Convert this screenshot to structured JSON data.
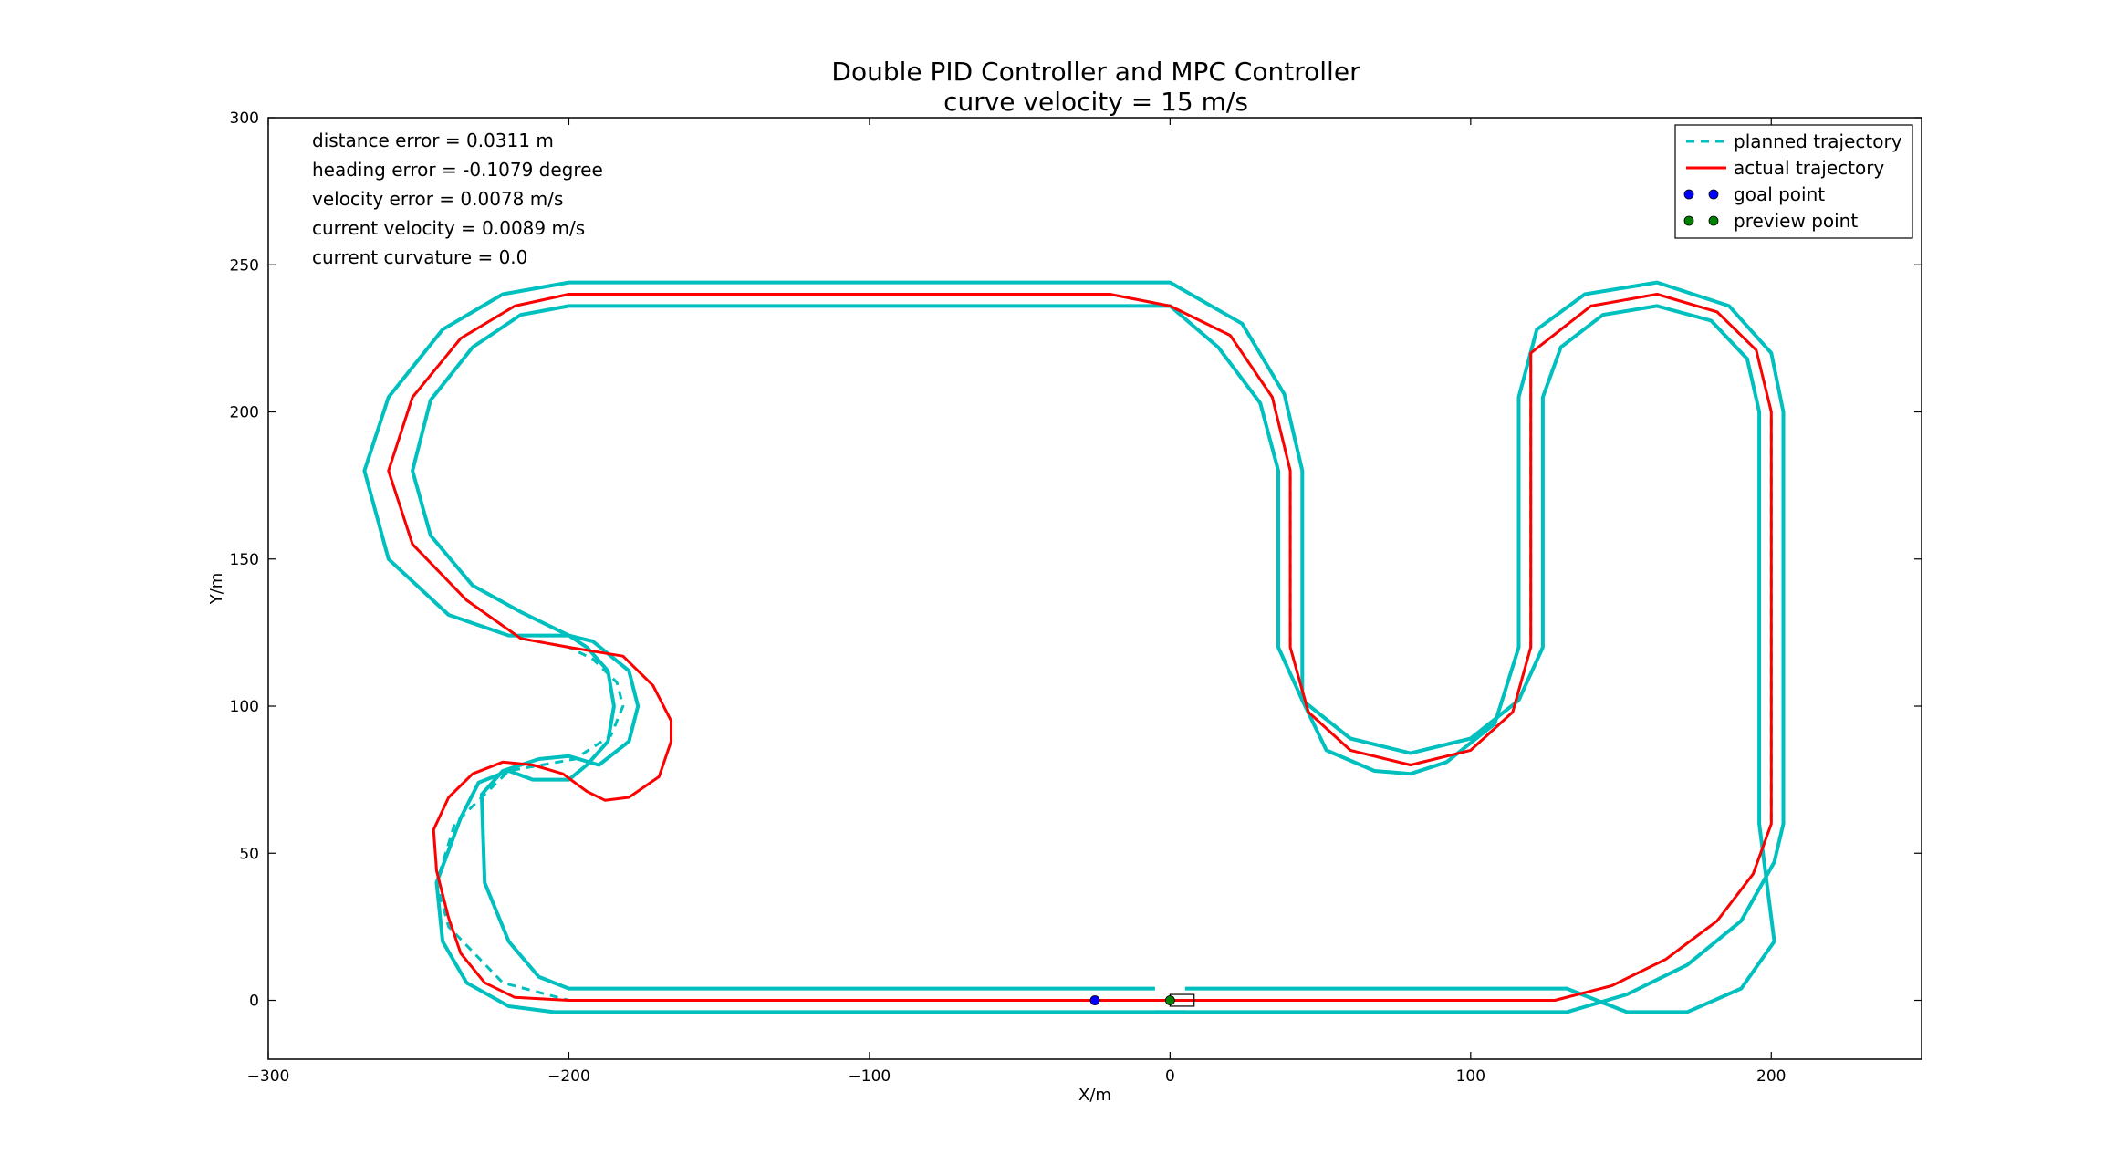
{
  "chart_data": {
    "type": "line",
    "title": "Double PID Controller and MPC Controller",
    "subtitle": "curve velocity = 15 m/s",
    "xlabel": "X/m",
    "ylabel": "Y/m",
    "xlim": [
      -300,
      250
    ],
    "ylim": [
      -20,
      300
    ],
    "xticks": [
      -300,
      -200,
      -100,
      0,
      100,
      200
    ],
    "xtick_labels": [
      "−300",
      "−200",
      "−100",
      "0",
      "100",
      "200"
    ],
    "yticks": [
      0,
      50,
      100,
      150,
      200,
      250,
      300
    ],
    "ytick_labels": [
      "0",
      "50",
      "100",
      "150",
      "200",
      "250",
      "300"
    ],
    "grid": false,
    "legend_position": "top-right",
    "info_text": [
      "distance error = 0.0311 m",
      "heading error = -0.1079 degree",
      "velocity error = 0.0078 m/s",
      "current velocity = 0.0089 m/s",
      "current curvature = 0.0"
    ],
    "legend": [
      {
        "label": "planned trajectory",
        "style": "dashed-line",
        "color": "#00bfbf"
      },
      {
        "label": "actual trajectory",
        "style": "line",
        "color": "#ff0000"
      },
      {
        "label": "goal point",
        "style": "dots",
        "color": "#0000ff"
      },
      {
        "label": "preview point",
        "style": "dots",
        "color": "#008000"
      }
    ],
    "series": [
      {
        "name": "planned trajectory",
        "color": "#00bfbf",
        "style": "dashed",
        "x": [
          -200,
          -23,
          0,
          122,
          128,
          147,
          165,
          182,
          194,
          200,
          200,
          195,
          182,
          162,
          140,
          120,
          120,
          114,
          100,
          80,
          60,
          46,
          40,
          40,
          34,
          20,
          0,
          -20,
          -200,
          -218,
          -236,
          -252,
          -260,
          -252,
          -234,
          -216,
          -200,
          -192,
          -184,
          -182,
          -186,
          -198,
          -220,
          -238,
          -244,
          -240,
          -222,
          -200
        ],
        "y": [
          0,
          0,
          0,
          0,
          0,
          5,
          14,
          27,
          43,
          60,
          200,
          221,
          234,
          240,
          236,
          220,
          120,
          98,
          85,
          80,
          85,
          98,
          120,
          180,
          205,
          226,
          236,
          240,
          240,
          236,
          225,
          205,
          180,
          155,
          136,
          123,
          120,
          116,
          108,
          100,
          90,
          82,
          78,
          60,
          40,
          25,
          6,
          0
        ]
      },
      {
        "name": "actual trajectory",
        "color": "#ff0000",
        "style": "solid",
        "x": [
          -200,
          -23,
          0,
          122,
          128,
          147,
          165,
          182,
          194,
          200,
          200,
          195,
          182,
          162,
          140,
          120,
          120,
          114,
          100,
          80,
          60,
          46,
          40,
          40,
          34,
          20,
          0,
          -20,
          -200,
          -218,
          -236,
          -252,
          -260,
          -252,
          -234,
          -216,
          -200,
          -182,
          -172,
          -166,
          -166,
          -170,
          -180,
          -188,
          -194,
          -202,
          -212,
          -222,
          -232,
          -240,
          -245,
          -244,
          -240,
          -236,
          -228,
          -218,
          -200
        ],
        "y": [
          0,
          0,
          0,
          0,
          0,
          5,
          14,
          27,
          43,
          60,
          200,
          221,
          234,
          240,
          236,
          220,
          120,
          98,
          85,
          80,
          85,
          98,
          120,
          180,
          205,
          226,
          236,
          240,
          240,
          236,
          225,
          205,
          180,
          155,
          136,
          123,
          120,
          117,
          107,
          95,
          88,
          76,
          69,
          68,
          71,
          77,
          80,
          81,
          77,
          69,
          58,
          44,
          28,
          16,
          6,
          1,
          0
        ]
      }
    ],
    "track_boundaries": [
      {
        "name": "outer boundary",
        "color": "#00bfbf",
        "x": [
          -5,
          124,
          132,
          152,
          172,
          190,
          201,
          204,
          204,
          200,
          186,
          162,
          138,
          122,
          116,
          116,
          108,
          92,
          80,
          68,
          52,
          44,
          44,
          38,
          24,
          0,
          -20,
          -200,
          -222,
          -242,
          -260,
          -268,
          -260,
          -240,
          -220,
          -200,
          -192,
          -180,
          -177,
          -180,
          -190,
          -200,
          -210,
          -222,
          -229,
          -228,
          -220,
          -210,
          -200,
          -5
        ],
        "y": [
          -4,
          -4,
          -4,
          2,
          12,
          27,
          47,
          60,
          200,
          220,
          236,
          244,
          240,
          228,
          205,
          120,
          94,
          81,
          77,
          78,
          85,
          102,
          180,
          206,
          230,
          244,
          244,
          244,
          240,
          228,
          205,
          180,
          150,
          131,
          124,
          124,
          122,
          112,
          100,
          88,
          80,
          83,
          82,
          78,
          70,
          40,
          20,
          8,
          4,
          4
        ]
      },
      {
        "name": "inner boundary",
        "color": "#00bfbf",
        "x": [
          5,
          124,
          132,
          152,
          172,
          190,
          201,
          196,
          196,
          192,
          180,
          162,
          144,
          130,
          124,
          124,
          116,
          100,
          80,
          60,
          44,
          36,
          36,
          30,
          16,
          0,
          -20,
          -200,
          -216,
          -232,
          -246,
          -252,
          -246,
          -232,
          -216,
          -200,
          -194,
          -187,
          -185,
          -187,
          -194,
          -200,
          -212,
          -220,
          -230,
          -236,
          -244,
          -242,
          -234,
          -220,
          -205,
          5
        ],
        "y": [
          4,
          4,
          4,
          -4,
          -4,
          4,
          20,
          60,
          200,
          218,
          231,
          236,
          233,
          222,
          205,
          120,
          102,
          89,
          84,
          89,
          102,
          120,
          180,
          203,
          222,
          236,
          236,
          236,
          233,
          222,
          204,
          180,
          158,
          141,
          132,
          124,
          120,
          112,
          100,
          88,
          80,
          75,
          75,
          78,
          74,
          62,
          40,
          20,
          6,
          -2,
          -4,
          -4
        ]
      }
    ],
    "goal_point": {
      "x": -25,
      "y": 0
    },
    "preview_point": {
      "x": 0,
      "y": 0
    },
    "vehicle_box": {
      "x_min": 0,
      "x_max": 8,
      "y_min": -2,
      "y_max": 2
    }
  }
}
